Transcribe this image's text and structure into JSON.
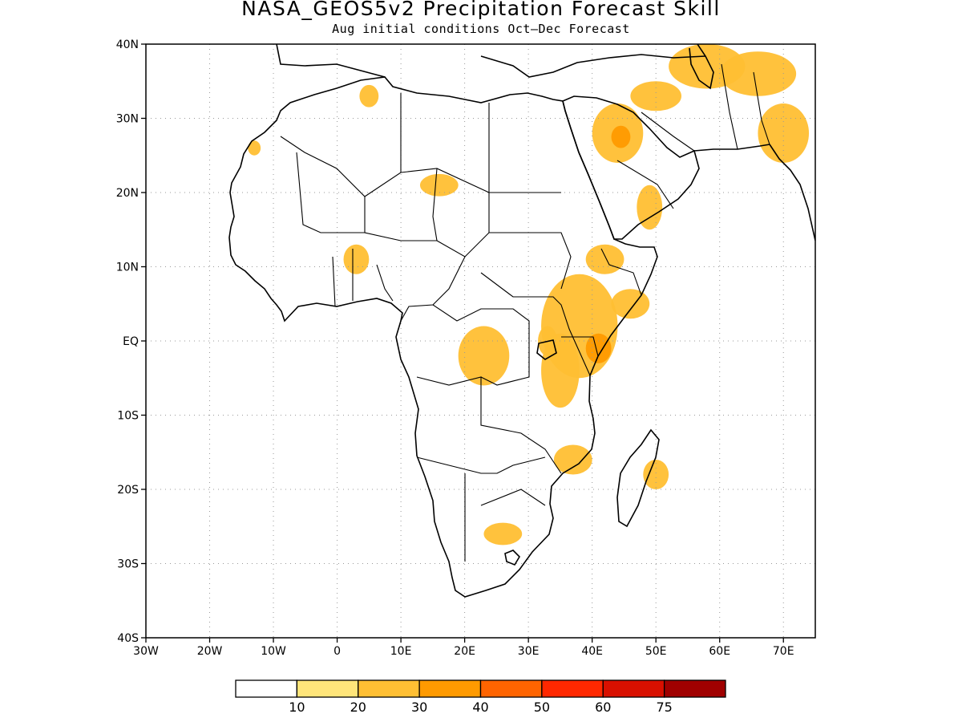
{
  "title": "NASA_GEOS5v2 Precipitation Forecast Skill",
  "subtitle": "Aug initial conditions  Oct–Dec Forecast",
  "map": {
    "lon_range": [
      -30,
      75
    ],
    "lat_range": [
      -40,
      40
    ],
    "grid": true,
    "lon_ticks": [
      {
        "value": -30,
        "label": "30W"
      },
      {
        "value": -20,
        "label": "20W"
      },
      {
        "value": -10,
        "label": "10W"
      },
      {
        "value": 0,
        "label": "0"
      },
      {
        "value": 10,
        "label": "10E"
      },
      {
        "value": 20,
        "label": "20E"
      },
      {
        "value": 30,
        "label": "30E"
      },
      {
        "value": 40,
        "label": "40E"
      },
      {
        "value": 50,
        "label": "50E"
      },
      {
        "value": 60,
        "label": "60E"
      },
      {
        "value": 70,
        "label": "70E"
      }
    ],
    "lat_ticks": [
      {
        "value": 40,
        "label": "40N"
      },
      {
        "value": 30,
        "label": "30N"
      },
      {
        "value": 20,
        "label": "20N"
      },
      {
        "value": 10,
        "label": "10N"
      },
      {
        "value": 0,
        "label": "EQ"
      },
      {
        "value": -10,
        "label": "10S"
      },
      {
        "value": -20,
        "label": "20S"
      },
      {
        "value": -30,
        "label": "30S"
      },
      {
        "value": -40,
        "label": "40S"
      }
    ]
  },
  "colorbar": {
    "colors": [
      "#ffffff",
      "#ffe57a",
      "#ffbf33",
      "#ff9a00",
      "#ff6400",
      "#ff2800",
      "#d81000",
      "#a00000"
    ],
    "labels": [
      "10",
      "20",
      "30",
      "40",
      "50",
      "60",
      "75"
    ]
  },
  "chart_data": {
    "type": "heatmap",
    "title": "NASA_GEOS5v2 Precipitation Forecast Skill",
    "subtitle": "Aug initial conditions  Oct–Dec Forecast",
    "xlim": [
      -30,
      75
    ],
    "ylim": [
      -40,
      40
    ],
    "levels": [
      10,
      20,
      30,
      40,
      50,
      60,
      75
    ],
    "regions": [
      {
        "name_note": "",
        "lon": 38,
        "lat": 2,
        "rlon": 6,
        "rlat": 7,
        "level": 20
      },
      {
        "name_note": "",
        "lon": 41,
        "lat": -1,
        "rlon": 2,
        "rlat": 2,
        "level": 30
      },
      {
        "name_note": "",
        "lon": 46,
        "lat": 5,
        "rlon": 3,
        "rlat": 2,
        "level": 20
      },
      {
        "name_note": "",
        "lon": 44,
        "lat": 28,
        "rlon": 4,
        "rlat": 4,
        "level": 20
      },
      {
        "name_note": "",
        "lon": 44.5,
        "lat": 27.5,
        "rlon": 1.5,
        "rlat": 1.5,
        "level": 30
      },
      {
        "name_note": "",
        "lon": 35,
        "lat": -4,
        "rlon": 3,
        "rlat": 5,
        "level": 20
      },
      {
        "name_note": "",
        "lon": 23,
        "lat": -2,
        "rlon": 4,
        "rlat": 4,
        "level": 20
      },
      {
        "name_note": "",
        "lon": 70,
        "lat": 28,
        "rlon": 4,
        "rlat": 4,
        "level": 20
      },
      {
        "name_note": "",
        "lon": 66,
        "lat": 36,
        "rlon": 6,
        "rlat": 3,
        "level": 20
      },
      {
        "name_note": "",
        "lon": 58,
        "lat": 37,
        "rlon": 6,
        "rlat": 3,
        "level": 20
      },
      {
        "name_note": "",
        "lon": 42,
        "lat": 11,
        "rlon": 3,
        "rlat": 2,
        "level": 20
      },
      {
        "name_note": "",
        "lon": 33,
        "lat": 0,
        "rlon": 1.5,
        "rlat": 2,
        "level": 20
      },
      {
        "name_note": "",
        "lon": 3,
        "lat": 11,
        "rlon": 2,
        "rlat": 2,
        "level": 20
      },
      {
        "name_note": "",
        "lon": 37,
        "lat": -16,
        "rlon": 3,
        "rlat": 2,
        "level": 20
      },
      {
        "name_note": "",
        "lon": 26,
        "lat": -26,
        "rlon": 3,
        "rlat": 1.5,
        "level": 20
      },
      {
        "name_note": "",
        "lon": 16,
        "lat": 21,
        "rlon": 3,
        "rlat": 1.5,
        "level": 20
      },
      {
        "name_note": "",
        "lon": 5,
        "lat": 33,
        "rlon": 1.5,
        "rlat": 1.5,
        "level": 20
      },
      {
        "name_note": "",
        "lon": -13,
        "lat": 26,
        "rlon": 1,
        "rlat": 1,
        "level": 20
      },
      {
        "name_note": "",
        "lon": 50,
        "lat": 33,
        "rlon": 4,
        "rlat": 2,
        "level": 20
      },
      {
        "name_note": "",
        "lon": 49,
        "lat": 18,
        "rlon": 2,
        "rlat": 3,
        "level": 20
      },
      {
        "name_note": "",
        "lon": 50,
        "lat": -18,
        "rlon": 2,
        "rlat": 2,
        "level": 20
      }
    ]
  }
}
